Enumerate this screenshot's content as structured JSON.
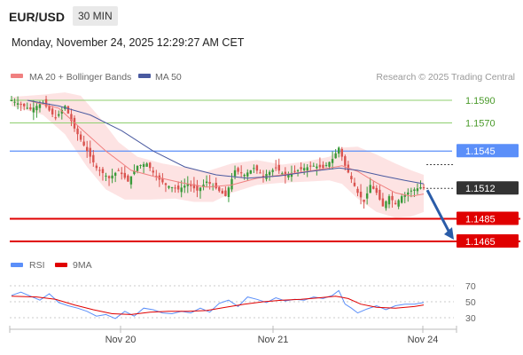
{
  "header": {
    "symbol": "EUR/USD",
    "timeframe": "30 MIN"
  },
  "datetime": "Monday, November 24, 2025 12:29:27 AM CET",
  "legend": {
    "ma20": "MA 20 + Bollinger Bands",
    "ma50": "MA 50"
  },
  "credit": "Research © 2025 Trading Central",
  "colors": {
    "up": "#3a9a3a",
    "down": "#d9534f",
    "ma20": "#f08080",
    "ma50": "#4a5aa0",
    "band": "#fde0e0",
    "level_green": "#8fcf6f",
    "level_blue": "#5b8ff9",
    "level_red": "#e00000",
    "rsi": "#5b8ff9",
    "rsi_ma": "#e00000",
    "current": "#333333",
    "arrow": "#2a5ca8"
  },
  "chart_data": [
    {
      "type": "candlestick",
      "title": "",
      "x_ticks": [
        "Nov 20",
        "Nov 21",
        "Nov 24"
      ],
      "ylim": [
        1.1455,
        1.1605
      ],
      "levels": [
        {
          "value": 1.159,
          "label": "1.1590",
          "kind": "resistance-minor"
        },
        {
          "value": 1.157,
          "label": "1.1570",
          "kind": "resistance-minor"
        },
        {
          "value": 1.1545,
          "label": "1.1545",
          "kind": "pivot"
        },
        {
          "value": 1.1485,
          "label": "1.1485",
          "kind": "support"
        },
        {
          "value": 1.1465,
          "label": "1.1465",
          "kind": "support"
        }
      ],
      "current_price": {
        "value": 1.1512,
        "label": "1.1512"
      },
      "forecast_arrow": {
        "from": 1.1512,
        "to": 1.1465,
        "direction": "down"
      },
      "close_path": [
        [
          0,
          1.159
        ],
        [
          6,
          1.1582
        ],
        [
          10,
          1.1588
        ],
        [
          14,
          1.1574
        ],
        [
          17,
          1.1585
        ],
        [
          20,
          1.1565
        ],
        [
          24,
          1.1545
        ],
        [
          27,
          1.153
        ],
        [
          31,
          1.1521
        ],
        [
          34,
          1.1528
        ],
        [
          37,
          1.1518
        ],
        [
          40,
          1.1532
        ],
        [
          43,
          1.1534
        ],
        [
          46,
          1.1522
        ],
        [
          49,
          1.1515
        ],
        [
          53,
          1.1511
        ],
        [
          56,
          1.1516
        ],
        [
          59,
          1.151
        ],
        [
          62,
          1.1518
        ],
        [
          65,
          1.1512
        ],
        [
          68,
          1.1505
        ],
        [
          71,
          1.1528
        ],
        [
          74,
          1.1524
        ],
        [
          77,
          1.153
        ],
        [
          80,
          1.1523
        ],
        [
          84,
          1.153
        ],
        [
          87,
          1.1523
        ],
        [
          90,
          1.1527
        ],
        [
          93,
          1.153
        ],
        [
          96,
          1.1532
        ],
        [
          99,
          1.153
        ],
        [
          102,
          1.1538
        ],
        [
          104,
          1.1548
        ],
        [
          106,
          1.1532
        ],
        [
          108,
          1.152
        ],
        [
          110,
          1.1508
        ],
        [
          112,
          1.15
        ],
        [
          114,
          1.1515
        ],
        [
          116,
          1.1508
        ],
        [
          118,
          1.1496
        ],
        [
          120,
          1.1505
        ],
        [
          122,
          1.1498
        ],
        [
          124,
          1.1505
        ],
        [
          127,
          1.151
        ],
        [
          130,
          1.1513
        ],
        [
          131,
          1.1512
        ]
      ],
      "ma20_path": [
        [
          5,
          1.159
        ],
        [
          15,
          1.1583
        ],
        [
          22,
          1.1565
        ],
        [
          30,
          1.1545
        ],
        [
          38,
          1.1528
        ],
        [
          46,
          1.1522
        ],
        [
          54,
          1.1517
        ],
        [
          62,
          1.1513
        ],
        [
          70,
          1.1515
        ],
        [
          78,
          1.1521
        ],
        [
          86,
          1.1524
        ],
        [
          94,
          1.1527
        ],
        [
          101,
          1.153
        ],
        [
          105,
          1.1532
        ],
        [
          110,
          1.1527
        ],
        [
          116,
          1.1517
        ],
        [
          122,
          1.1508
        ],
        [
          127,
          1.1505
        ],
        [
          131,
          1.1507
        ]
      ],
      "ma50_path": [
        [
          5,
          1.159
        ],
        [
          15,
          1.1585
        ],
        [
          25,
          1.1577
        ],
        [
          35,
          1.1563
        ],
        [
          45,
          1.1545
        ],
        [
          55,
          1.1531
        ],
        [
          65,
          1.1524
        ],
        [
          75,
          1.1521
        ],
        [
          85,
          1.1523
        ],
        [
          95,
          1.1527
        ],
        [
          104,
          1.153
        ],
        [
          110,
          1.1528
        ],
        [
          118,
          1.1523
        ],
        [
          125,
          1.1519
        ],
        [
          131,
          1.1516
        ]
      ],
      "band_upper": [
        [
          0,
          1.1593
        ],
        [
          10,
          1.1595
        ],
        [
          17,
          1.1597
        ],
        [
          22,
          1.1594
        ],
        [
          28,
          1.1575
        ],
        [
          34,
          1.1553
        ],
        [
          40,
          1.154
        ],
        [
          48,
          1.1534
        ],
        [
          56,
          1.153
        ],
        [
          62,
          1.1527
        ],
        [
          70,
          1.1534
        ],
        [
          78,
          1.1537
        ],
        [
          86,
          1.1533
        ],
        [
          94,
          1.1536
        ],
        [
          101,
          1.154
        ],
        [
          105,
          1.1548
        ],
        [
          110,
          1.1549
        ],
        [
          116,
          1.1542
        ],
        [
          122,
          1.1534
        ],
        [
          127,
          1.1528
        ],
        [
          131,
          1.1524
        ]
      ],
      "band_lower": [
        [
          0,
          1.1585
        ],
        [
          10,
          1.1577
        ],
        [
          17,
          1.156
        ],
        [
          24,
          1.1531
        ],
        [
          30,
          1.1511
        ],
        [
          36,
          1.1502
        ],
        [
          44,
          1.1502
        ],
        [
          52,
          1.1503
        ],
        [
          58,
          1.15
        ],
        [
          64,
          1.15
        ],
        [
          70,
          1.1508
        ],
        [
          78,
          1.1515
        ],
        [
          86,
          1.1517
        ],
        [
          94,
          1.1518
        ],
        [
          101,
          1.1519
        ],
        [
          105,
          1.1516
        ],
        [
          110,
          1.1503
        ],
        [
          116,
          1.1491
        ],
        [
          122,
          1.1486
        ],
        [
          127,
          1.1487
        ],
        [
          131,
          1.1491
        ]
      ]
    },
    {
      "type": "line",
      "title": "",
      "series": [
        {
          "name": "RSI"
        },
        {
          "name": "9MA"
        }
      ],
      "ylim": [
        25,
        75
      ],
      "y_ticks": [
        70,
        50,
        30
      ],
      "rsi_path": [
        [
          0,
          58
        ],
        [
          3,
          62
        ],
        [
          6,
          57
        ],
        [
          9,
          52
        ],
        [
          12,
          60
        ],
        [
          15,
          49
        ],
        [
          18,
          45
        ],
        [
          21,
          42
        ],
        [
          24,
          38
        ],
        [
          27,
          32
        ],
        [
          30,
          34
        ],
        [
          33,
          29
        ],
        [
          36,
          38
        ],
        [
          39,
          32
        ],
        [
          42,
          42
        ],
        [
          45,
          40
        ],
        [
          48,
          36
        ],
        [
          51,
          35
        ],
        [
          54,
          38
        ],
        [
          57,
          36
        ],
        [
          60,
          42
        ],
        [
          63,
          37
        ],
        [
          66,
          48
        ],
        [
          69,
          52
        ],
        [
          72,
          44
        ],
        [
          75,
          56
        ],
        [
          78,
          53
        ],
        [
          81,
          49
        ],
        [
          84,
          55
        ],
        [
          87,
          51
        ],
        [
          90,
          53
        ],
        [
          93,
          52
        ],
        [
          96,
          56
        ],
        [
          99,
          54
        ],
        [
          102,
          58
        ],
        [
          104,
          64
        ],
        [
          106,
          47
        ],
        [
          108,
          42
        ],
        [
          110,
          36
        ],
        [
          113,
          41
        ],
        [
          116,
          45
        ],
        [
          119,
          40
        ],
        [
          122,
          45
        ],
        [
          125,
          47
        ],
        [
          128,
          47
        ],
        [
          131,
          49
        ]
      ],
      "rsi_ma_path": [
        [
          0,
          57
        ],
        [
          8,
          56
        ],
        [
          14,
          53
        ],
        [
          20,
          46
        ],
        [
          26,
          40
        ],
        [
          32,
          35
        ],
        [
          38,
          34
        ],
        [
          44,
          37
        ],
        [
          50,
          38
        ],
        [
          56,
          38
        ],
        [
          62,
          39
        ],
        [
          68,
          43
        ],
        [
          74,
          47
        ],
        [
          80,
          50
        ],
        [
          86,
          52
        ],
        [
          92,
          53
        ],
        [
          98,
          55
        ],
        [
          103,
          57
        ],
        [
          107,
          54
        ],
        [
          111,
          47
        ],
        [
          116,
          43
        ],
        [
          122,
          42
        ],
        [
          128,
          44
        ],
        [
          131,
          46
        ]
      ]
    }
  ]
}
